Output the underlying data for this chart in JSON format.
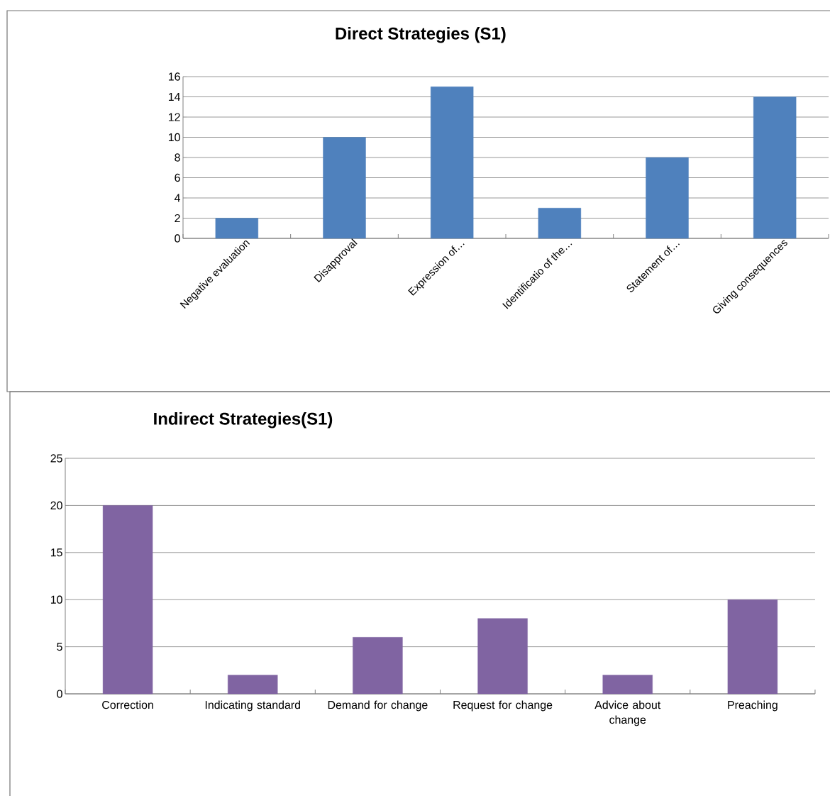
{
  "chart_data": [
    {
      "type": "bar",
      "title": "Direct Strategies  (S1)",
      "categories": [
        "Negative evaluation",
        "Disapproval",
        "Expression of…",
        "Identificatio of the…",
        "Statement of…",
        "Giving consequences"
      ],
      "values": [
        2,
        10,
        15,
        3,
        8,
        14
      ],
      "color": "#4f81bd",
      "ylim": [
        0,
        16
      ],
      "yticks": [
        0,
        2,
        4,
        6,
        8,
        10,
        12,
        14,
        16
      ],
      "grid": "y"
    },
    {
      "type": "bar",
      "title": "Indirect Strategies(S1)",
      "categories": [
        "Correction",
        "Indicating standard",
        "Demand for change",
        "Request for change",
        "Advice about change",
        "Preaching"
      ],
      "values": [
        20,
        2,
        6,
        8,
        2,
        10
      ],
      "color": "#8064a2",
      "ylim": [
        0,
        25
      ],
      "yticks": [
        0,
        5,
        10,
        15,
        20,
        25
      ],
      "grid": "y"
    }
  ]
}
